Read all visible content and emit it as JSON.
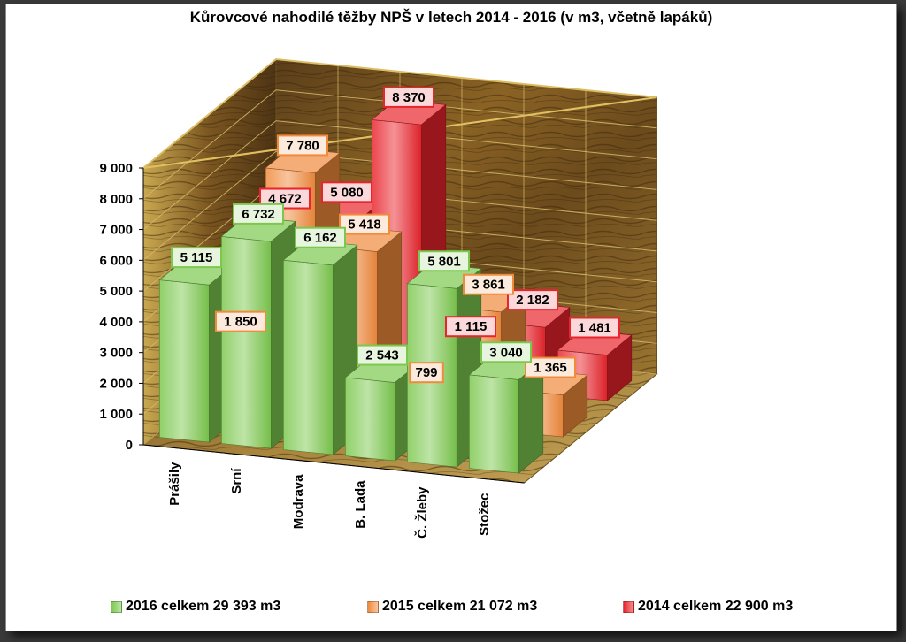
{
  "chart_data": {
    "type": "bar",
    "title": "Kůrovcové nahodilé těžby NPŠ v letech 2014 - 2016 (v m3, včetně lapáků)",
    "categories": [
      "Prášily",
      "Srní",
      "Modrava",
      "B. Lada",
      "Č. Žleby",
      "Stožec"
    ],
    "y_ticks": [
      "0",
      "1 000",
      "2 000",
      "3 000",
      "4 000",
      "5 000",
      "6 000",
      "7 000",
      "8 000",
      "9 000"
    ],
    "ylim": [
      0,
      9000
    ],
    "grid": true,
    "legend_position": "bottom",
    "series": [
      {
        "name": "2016 celkem 29 393 m3",
        "color": "#7cc84e",
        "values": [
          5115,
          6732,
          6162,
          2543,
          5801,
          3040
        ],
        "labels": [
          "5 115",
          "6 732",
          "6 162",
          "2 543",
          "5 801",
          "3 040"
        ]
      },
      {
        "name": "2015 celkem 21 072 m3",
        "color": "#f08a3c",
        "values": [
          1850,
          7780,
          5418,
          799,
          3861,
          1365
        ],
        "labels": [
          "1 850",
          "7 780",
          "5 418",
          "799",
          "3 861",
          "1 365"
        ]
      },
      {
        "name": "2014 celkem 22 900 m3",
        "color": "#e8242c",
        "values": [
          4672,
          5080,
          8370,
          1115,
          2182,
          1481
        ],
        "labels": [
          "4 672",
          "5 080",
          "8 370",
          "1 115",
          "2 182",
          "1 481"
        ]
      }
    ]
  }
}
